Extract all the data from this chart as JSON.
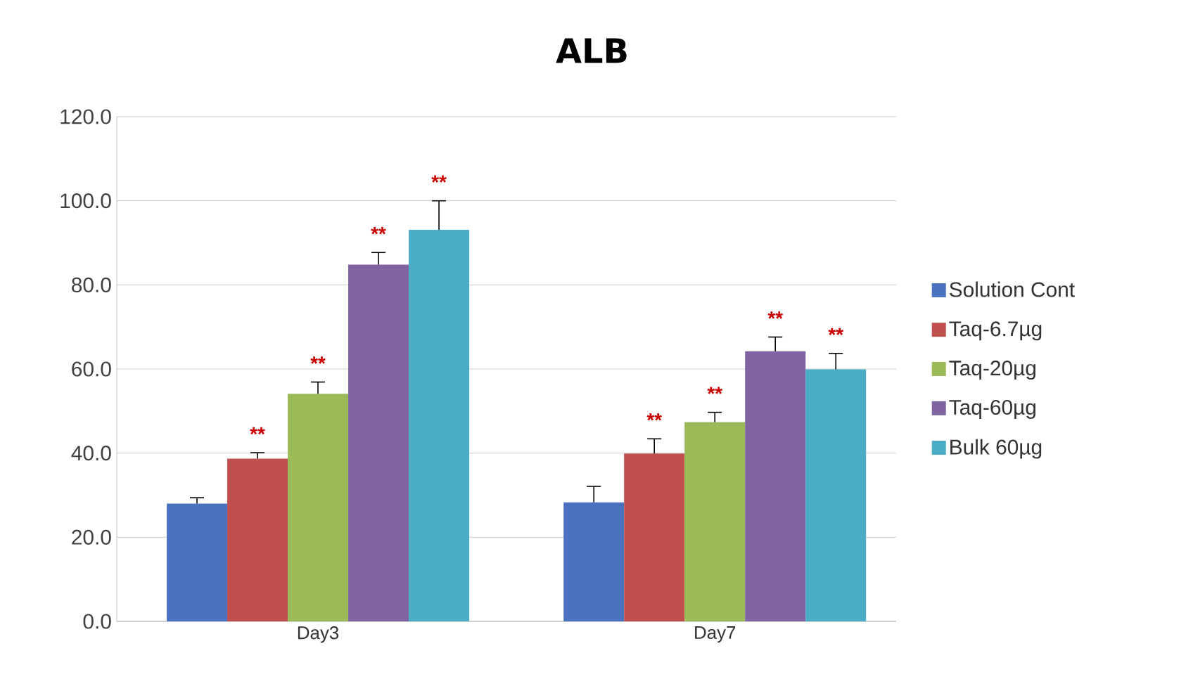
{
  "chart_data": {
    "type": "bar",
    "title": "ALB",
    "categories": [
      "Day3",
      "Day7"
    ],
    "series": [
      {
        "name": "Solution Cont",
        "color": "#4a72c0",
        "values": [
          28.0,
          28.3
        ],
        "errors": [
          1.4,
          3.8
        ]
      },
      {
        "name": "Taq-6.7µg",
        "color": "#c0504d",
        "values": [
          38.7,
          39.9
        ],
        "errors": [
          1.4,
          3.5
        ],
        "value_labels": [
          "**",
          "**"
        ]
      },
      {
        "name": "Taq-20µg",
        "color": "#9bbb59",
        "values": [
          54.1,
          47.4
        ],
        "errors": [
          2.8,
          2.3
        ],
        "value_labels": [
          "**",
          "**"
        ]
      },
      {
        "name": "Taq-60µg",
        "color": "#8064a2",
        "values": [
          84.8,
          64.2
        ],
        "errors": [
          2.9,
          3.4
        ],
        "value_labels": [
          "**",
          "**"
        ]
      },
      {
        "name": "Bulk   60µg",
        "color": "#4bacc6",
        "values": [
          93.1,
          59.9
        ],
        "errors": [
          6.9,
          3.8
        ],
        "value_labels": [
          "**",
          "**"
        ]
      }
    ],
    "ylim": [
      0,
      120
    ],
    "yticks": [
      {
        "value": 0,
        "label": "0.0"
      },
      {
        "value": 20,
        "label": "20.0"
      },
      {
        "value": 40,
        "label": "40.0"
      },
      {
        "value": 60,
        "label": "60.0"
      },
      {
        "value": 80,
        "label": "80.0"
      },
      {
        "value": 100,
        "label": "100.0"
      },
      {
        "value": 120,
        "label": "120.0"
      }
    ],
    "grid": "y",
    "legend": "right"
  }
}
